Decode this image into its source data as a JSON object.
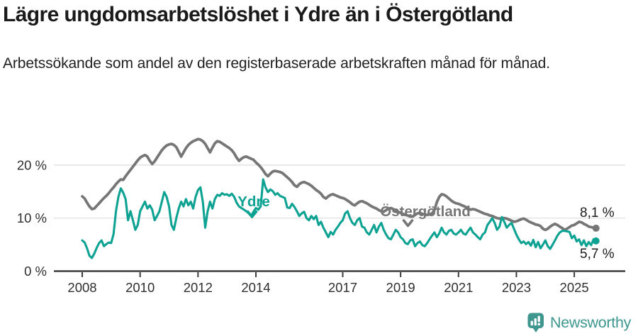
{
  "header": {
    "title": "Lägre ungdomsarbetslöshet i Ydre än i Östergötland",
    "subtitle": "Arbetssökande som andel av den registerbaserade arbetskraften månad för månad."
  },
  "chart_data": {
    "type": "line",
    "title": "",
    "xlabel": "",
    "ylabel": "",
    "x_unit": "month",
    "x_start": "2008-01",
    "x_end": "2025-10",
    "x_start_decimal": 2008.0,
    "x_step_years": 0.08333,
    "ylim": [
      0,
      26.8
    ],
    "grid": "horizontal",
    "yticks": [
      {
        "value": 0,
        "label": "0 %"
      },
      {
        "value": 10,
        "label": "10 %"
      },
      {
        "value": 20,
        "label": "20 %"
      }
    ],
    "xticks": [
      {
        "value": 2008,
        "label": "2008"
      },
      {
        "value": 2010,
        "label": "2010"
      },
      {
        "value": 2012,
        "label": "2012"
      },
      {
        "value": 2014,
        "label": "2014"
      },
      {
        "value": 2017,
        "label": "2017"
      },
      {
        "value": 2019,
        "label": "2019"
      },
      {
        "value": 2021,
        "label": "2021"
      },
      {
        "value": 2023,
        "label": "2023"
      },
      {
        "value": 2025,
        "label": "2025"
      }
    ],
    "series": [
      {
        "name": "Östergötland",
        "color": "#767676",
        "end_label": "8,1 %",
        "end_value": 8.1,
        "values": [
          14.1,
          13.7,
          12.9,
          12.2,
          11.7,
          11.8,
          12.3,
          12.8,
          13.3,
          13.8,
          14.2,
          14.7,
          15.3,
          15.8,
          16.4,
          16.9,
          17.3,
          17.2,
          17.9,
          18.5,
          19.1,
          19.7,
          20.3,
          20.9,
          21.4,
          21.7,
          21.9,
          21.6,
          20.8,
          20.2,
          20.7,
          21.4,
          22.1,
          22.8,
          23.3,
          23.7,
          23.9,
          24.0,
          23.8,
          23.4,
          22.5,
          21.6,
          22.4,
          23.2,
          23.8,
          24.2,
          24.5,
          24.7,
          24.9,
          24.8,
          24.5,
          24.0,
          23.2,
          22.4,
          23.3,
          24.1,
          24.5,
          24.4,
          24.1,
          23.8,
          23.5,
          23.2,
          22.8,
          22.2,
          21.4,
          20.8,
          21.2,
          21.5,
          21.6,
          21.4,
          21.2,
          21.0,
          20.5,
          20.1,
          19.6,
          19.0,
          18.3,
          17.9,
          18.4,
          18.8,
          18.9,
          18.8,
          18.7,
          18.5,
          18.1,
          17.7,
          17.3,
          16.8,
          16.2,
          15.9,
          16.4,
          16.7,
          16.8,
          16.6,
          16.4,
          16.1,
          15.7,
          15.3,
          15.0,
          14.6,
          14.0,
          13.7,
          14.1,
          14.4,
          14.5,
          14.3,
          14.1,
          13.9,
          13.8,
          13.6,
          13.3,
          13.0,
          12.6,
          12.4,
          12.8,
          13.1,
          13.2,
          13.0,
          12.8,
          12.5,
          12.2,
          12.0,
          11.8,
          11.5,
          11.3,
          11.2,
          11.5,
          11.8,
          11.9,
          11.7,
          11.4,
          11.2,
          11.0,
          10.8,
          10.6,
          10.5,
          10.3,
          10.3,
          10.6,
          10.9,
          11.0,
          10.8,
          10.7,
          10.6,
          10.7,
          10.9,
          11.5,
          13.0,
          14.0,
          14.5,
          14.4,
          14.1,
          13.7,
          13.3,
          13.0,
          12.8,
          12.7,
          12.5,
          12.3,
          12.1,
          11.8,
          11.6,
          11.7,
          11.6,
          11.4,
          11.2,
          11.0,
          10.8,
          10.7,
          10.5,
          10.4,
          10.2,
          10.0,
          9.9,
          10.0,
          10.0,
          9.9,
          9.7,
          9.5,
          9.3,
          9.4,
          9.6,
          9.8,
          9.9,
          9.7,
          9.4,
          9.2,
          9.0,
          8.8,
          8.7,
          8.5,
          8.0,
          7.8,
          8.0,
          8.4,
          8.7,
          8.9,
          8.7,
          8.4,
          8.1,
          7.8,
          8.0,
          8.3,
          8.6,
          8.7,
          9.0,
          9.3,
          9.2,
          8.9,
          8.7,
          8.4,
          8.3,
          8.2,
          8.1
        ]
      },
      {
        "name": "Ydre",
        "color": "#0ea293",
        "end_label": "5,7 %",
        "end_value": 5.7,
        "values": [
          5.8,
          5.4,
          4.3,
          2.9,
          2.5,
          3.3,
          4.4,
          5.3,
          5.8,
          4.7,
          5.1,
          5.4,
          5.3,
          7.0,
          11.3,
          14.0,
          15.6,
          14.8,
          13.6,
          9.6,
          11.3,
          9.6,
          7.8,
          8.7,
          11.3,
          12.2,
          13.1,
          11.8,
          12.4,
          11.6,
          9.6,
          10.4,
          11.3,
          13.1,
          14.9,
          14.0,
          12.2,
          8.7,
          7.8,
          10.0,
          11.8,
          13.1,
          12.2,
          13.6,
          12.4,
          13.1,
          11.8,
          14.0,
          15.3,
          15.8,
          13.1,
          8.2,
          11.3,
          13.1,
          11.8,
          13.6,
          14.4,
          14.2,
          14.7,
          14.4,
          14.5,
          14.2,
          14.6,
          14.0,
          12.9,
          12.2,
          11.9,
          11.6,
          11.3,
          10.9,
          10.4,
          11.2,
          11.9,
          11.6,
          12.2,
          17.3,
          15.8,
          14.9,
          15.4,
          15.1,
          14.4,
          14.7,
          14.2,
          14.0,
          13.8,
          12.0,
          11.9,
          12.7,
          12.1,
          11.3,
          10.4,
          10.9,
          11.2,
          10.0,
          9.6,
          10.4,
          9.8,
          10.4,
          8.7,
          9.3,
          8.2,
          7.3,
          6.4,
          7.4,
          6.9,
          7.8,
          8.4,
          9.1,
          9.6,
          10.9,
          11.3,
          10.0,
          9.1,
          8.7,
          9.6,
          10.0,
          8.4,
          8.2,
          7.3,
          6.9,
          7.8,
          8.7,
          7.3,
          8.4,
          9.1,
          7.8,
          6.9,
          6.2,
          6.0,
          6.9,
          7.8,
          7.3,
          6.4,
          6.0,
          5.3,
          5.1,
          5.8,
          6.0,
          4.7,
          5.3,
          5.6,
          4.9,
          4.7,
          5.3,
          6.0,
          6.7,
          7.3,
          6.4,
          7.1,
          8.2,
          7.3,
          6.9,
          7.6,
          7.8,
          7.1,
          6.9,
          7.3,
          7.8,
          7.1,
          6.9,
          7.6,
          8.2,
          7.3,
          6.9,
          6.4,
          6.0,
          6.9,
          7.3,
          8.7,
          9.3,
          10.0,
          9.1,
          7.8,
          8.4,
          10.2,
          9.3,
          8.2,
          8.7,
          9.1,
          8.0,
          6.9,
          6.0,
          5.3,
          5.6,
          5.1,
          5.5,
          4.8,
          5.9,
          4.5,
          5.5,
          4.3,
          5.0,
          5.8,
          4.7,
          4.2,
          5.0,
          5.8,
          6.7,
          7.3,
          7.6,
          7.6,
          7.5,
          7.4,
          6.2,
          6.7,
          5.6,
          6.0,
          4.9,
          5.8,
          4.7,
          5.5,
          4.9,
          6.0,
          5.7
        ]
      }
    ]
  },
  "colors": {
    "ydre_teal": "#0ea293",
    "ostergotland_gray": "#767676",
    "axis": "#3c3c3c",
    "grid": "#dcdcdc",
    "tick_label": "#2f2f2f",
    "end_label": "#1b1b1b",
    "brand_teal": "#3e968e"
  },
  "footer": {
    "brand": "Newsworthy"
  }
}
